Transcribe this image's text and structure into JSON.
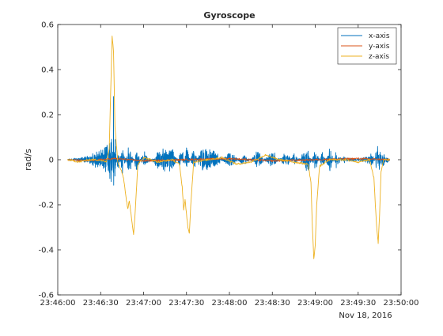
{
  "chart_data": {
    "type": "line",
    "title": "Gyroscope",
    "xlabel": "",
    "ylabel": "rad/s",
    "date_label": "Nov 18, 2016",
    "x_unit": "time (hh:mm:ss)",
    "xlim": [
      "23:46:00",
      "23:50:00"
    ],
    "ylim": [
      -0.6,
      0.6
    ],
    "x_ticks": [
      "23:46:00",
      "23:46:30",
      "23:47:00",
      "23:47:30",
      "23:48:00",
      "23:48:30",
      "23:49:00",
      "23:49:30",
      "23:50:00"
    ],
    "y_ticks": [
      "-0.6",
      "-0.4",
      "-0.2",
      "0",
      "0.2",
      "0.4",
      "0.6"
    ],
    "y_tick_values": [
      -0.6,
      -0.4,
      -0.2,
      0,
      0.2,
      0.4,
      0.6
    ],
    "grid": false,
    "legend_position": "top-right",
    "series": [
      {
        "name": "x-axis",
        "color": "#0072BD",
        "style": "noisy",
        "points": [
          [
            "23:46:07",
            0.0
          ],
          [
            "23:46:15",
            0.005
          ],
          [
            "23:46:20",
            0.01
          ],
          [
            "23:46:25",
            0.02
          ],
          [
            "23:46:30",
            0.03
          ],
          [
            "23:46:35",
            0.05
          ],
          [
            "23:46:38",
            0.09
          ],
          [
            "23:46:39",
            -0.21
          ],
          [
            "23:46:40",
            0.07
          ],
          [
            "23:46:42",
            -0.04
          ],
          [
            "23:46:45",
            0.05
          ],
          [
            "23:46:50",
            -0.05
          ],
          [
            "23:46:55",
            0.04
          ],
          [
            "23:47:00",
            -0.03
          ],
          [
            "23:47:10",
            0.03
          ],
          [
            "23:47:20",
            0.04
          ],
          [
            "23:47:27",
            -0.04
          ],
          [
            "23:47:30",
            0.05
          ],
          [
            "23:47:35",
            -0.04
          ],
          [
            "23:47:40",
            0.04
          ],
          [
            "23:47:50",
            0.03
          ],
          [
            "23:48:00",
            -0.03
          ],
          [
            "23:48:10",
            0.02
          ],
          [
            "23:48:20",
            -0.03
          ],
          [
            "23:48:30",
            0.03
          ],
          [
            "23:48:40",
            -0.03
          ],
          [
            "23:48:45",
            0.02
          ],
          [
            "23:48:55",
            -0.04
          ],
          [
            "23:49:00",
            0.04
          ],
          [
            "23:49:05",
            -0.03
          ],
          [
            "23:49:10",
            0.04
          ],
          [
            "23:49:15",
            -0.03
          ],
          [
            "23:49:20",
            0.01
          ],
          [
            "23:49:30",
            0.0
          ],
          [
            "23:49:40",
            0.02
          ],
          [
            "23:49:44",
            -0.05
          ],
          [
            "23:49:45",
            0.07
          ],
          [
            "23:49:47",
            -0.04
          ],
          [
            "23:49:50",
            0.01
          ],
          [
            "23:49:52",
            0.0
          ]
        ]
      },
      {
        "name": "y-axis",
        "color": "#D95319",
        "style": "smooth",
        "points": [
          [
            "23:46:07",
            0.0
          ],
          [
            "23:46:20",
            -0.005
          ],
          [
            "23:46:30",
            0.0
          ],
          [
            "23:46:40",
            0.005
          ],
          [
            "23:47:00",
            -0.005
          ],
          [
            "23:47:30",
            0.0
          ],
          [
            "23:48:00",
            0.005
          ],
          [
            "23:48:30",
            -0.005
          ],
          [
            "23:49:00",
            0.0
          ],
          [
            "23:49:30",
            0.005
          ],
          [
            "23:49:52",
            0.0
          ]
        ]
      },
      {
        "name": "z-axis",
        "color": "#EDB120",
        "style": "smooth",
        "points": [
          [
            "23:46:07",
            0.0
          ],
          [
            "23:46:15",
            -0.01
          ],
          [
            "23:46:22",
            0.0
          ],
          [
            "23:46:28",
            0.0
          ],
          [
            "23:46:34",
            -0.01
          ],
          [
            "23:46:36",
            0.05
          ],
          [
            "23:46:37",
            0.3
          ],
          [
            "23:46:38",
            0.55
          ],
          [
            "23:46:39",
            0.48
          ],
          [
            "23:46:40",
            0.15
          ],
          [
            "23:46:42",
            -0.01
          ],
          [
            "23:46:44",
            -0.04
          ],
          [
            "23:46:46",
            -0.08
          ],
          [
            "23:46:48",
            -0.18
          ],
          [
            "23:46:49",
            -0.22
          ],
          [
            "23:46:50",
            -0.18
          ],
          [
            "23:46:52",
            -0.28
          ],
          [
            "23:46:53",
            -0.33
          ],
          [
            "23:46:54",
            -0.25
          ],
          [
            "23:46:56",
            -0.02
          ],
          [
            "23:47:00",
            0.01
          ],
          [
            "23:47:10",
            -0.01
          ],
          [
            "23:47:20",
            0.0
          ],
          [
            "23:47:25",
            -0.02
          ],
          [
            "23:47:27",
            -0.12
          ],
          [
            "23:47:28",
            -0.22
          ],
          [
            "23:47:29",
            -0.18
          ],
          [
            "23:47:30",
            -0.24
          ],
          [
            "23:47:31",
            -0.3
          ],
          [
            "23:47:32",
            -0.33
          ],
          [
            "23:47:33",
            -0.2
          ],
          [
            "23:47:35",
            -0.01
          ],
          [
            "23:47:45",
            0.0
          ],
          [
            "23:47:55",
            0.01
          ],
          [
            "23:48:05",
            -0.02
          ],
          [
            "23:48:15",
            -0.01
          ],
          [
            "23:48:25",
            0.02
          ],
          [
            "23:48:35",
            0.0
          ],
          [
            "23:48:45",
            -0.01
          ],
          [
            "23:48:55",
            -0.02
          ],
          [
            "23:48:57",
            -0.1
          ],
          [
            "23:48:58",
            -0.3
          ],
          [
            "23:48:59",
            -0.44
          ],
          [
            "23:49:00",
            -0.38
          ],
          [
            "23:49:01",
            -0.2
          ],
          [
            "23:49:03",
            -0.03
          ],
          [
            "23:49:10",
            0.0
          ],
          [
            "23:49:20",
            0.0
          ],
          [
            "23:49:30",
            -0.01
          ],
          [
            "23:49:38",
            0.0
          ],
          [
            "23:49:41",
            -0.08
          ],
          [
            "23:49:42",
            -0.2
          ],
          [
            "23:49:43",
            -0.3
          ],
          [
            "23:49:44",
            -0.37
          ],
          [
            "23:49:45",
            -0.24
          ],
          [
            "23:49:46",
            -0.05
          ],
          [
            "23:49:48",
            0.0
          ],
          [
            "23:49:52",
            0.0
          ]
        ]
      }
    ]
  }
}
